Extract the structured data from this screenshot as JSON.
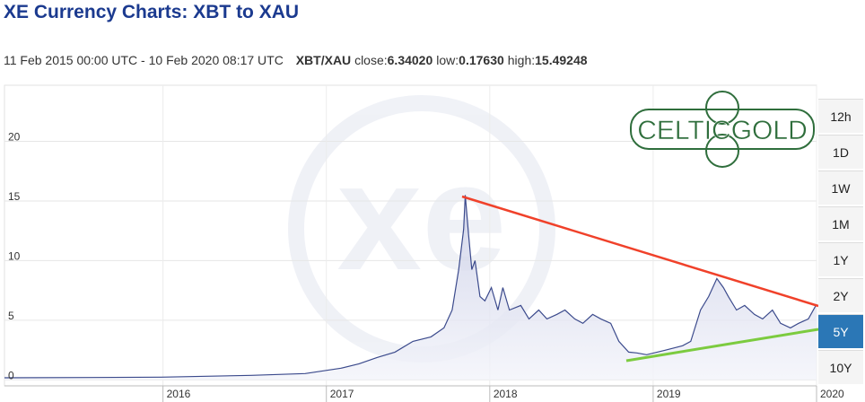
{
  "header": {
    "title": "XE Currency Charts: XBT to XAU",
    "range": "11 Feb 2015 00:00 UTC - 10 Feb 2020 08:17 UTC",
    "pair": "XBT/XAU",
    "stats": [
      {
        "label": "close:",
        "value": "6.34020"
      },
      {
        "label": "low:",
        "value": "0.17630"
      },
      {
        "label": "high:",
        "value": "15.49248"
      }
    ]
  },
  "logo": "CELTICGOLD",
  "watermark": "xe",
  "buttons": [
    {
      "label": "12h"
    },
    {
      "label": "1D"
    },
    {
      "label": "1W"
    },
    {
      "label": "1M"
    },
    {
      "label": "1Y"
    },
    {
      "label": "2Y"
    },
    {
      "label": "5Y",
      "active": true
    },
    {
      "label": "10Y"
    }
  ],
  "chart_data": {
    "type": "area",
    "x": [
      2015.03,
      2015.55,
      2015.99,
      2016.54,
      2016.87,
      2017.09,
      2017.2,
      2017.31,
      2017.42,
      2017.53,
      2017.64,
      2017.72,
      2017.77,
      2017.81,
      2017.84,
      2017.85,
      2017.87,
      2017.89,
      2017.91,
      2017.94,
      2017.97,
      2018.01,
      2018.05,
      2018.08,
      2018.12,
      2018.19,
      2018.24,
      2018.3,
      2018.35,
      2018.41,
      2018.46,
      2018.52,
      2018.57,
      2018.63,
      2018.68,
      2018.74,
      2018.79,
      2018.85,
      2018.9,
      2018.96,
      2019.07,
      2019.18,
      2019.23,
      2019.29,
      2019.34,
      2019.39,
      2019.43,
      2019.46,
      2019.51,
      2019.56,
      2019.62,
      2019.67,
      2019.73,
      2019.78,
      2019.84,
      2019.89,
      2019.95,
      2020.0
    ],
    "series": [
      {
        "name": "XBT/XAU",
        "color": "#3b4a8c",
        "values": [
          0.18,
          0.2,
          0.23,
          0.38,
          0.53,
          0.98,
          1.35,
          1.88,
          2.33,
          3.23,
          3.61,
          4.36,
          5.86,
          9.25,
          12.63,
          15.49,
          12.26,
          9.25,
          10,
          6.99,
          6.62,
          7.74,
          5.86,
          7.74,
          5.86,
          6.24,
          5.11,
          5.86,
          5.11,
          5.49,
          5.86,
          5.11,
          4.74,
          5.49,
          5.11,
          4.74,
          3.23,
          2.33,
          2.26,
          2.11,
          2.48,
          2.86,
          3.23,
          5.86,
          6.99,
          8.5,
          7.74,
          6.99,
          5.86,
          6.24,
          5.49,
          5.11,
          5.86,
          4.74,
          4.36,
          4.74,
          5.11,
          6.34
        ]
      }
    ],
    "xlim": [
      2015.03,
      2020.0
    ],
    "xticks": [
      2016,
      2017,
      2018,
      2019,
      2020
    ],
    "ylim": [
      -0.5,
      24.7
    ],
    "yticks": [
      0,
      5,
      10,
      15,
      20
    ],
    "grid": true
  }
}
